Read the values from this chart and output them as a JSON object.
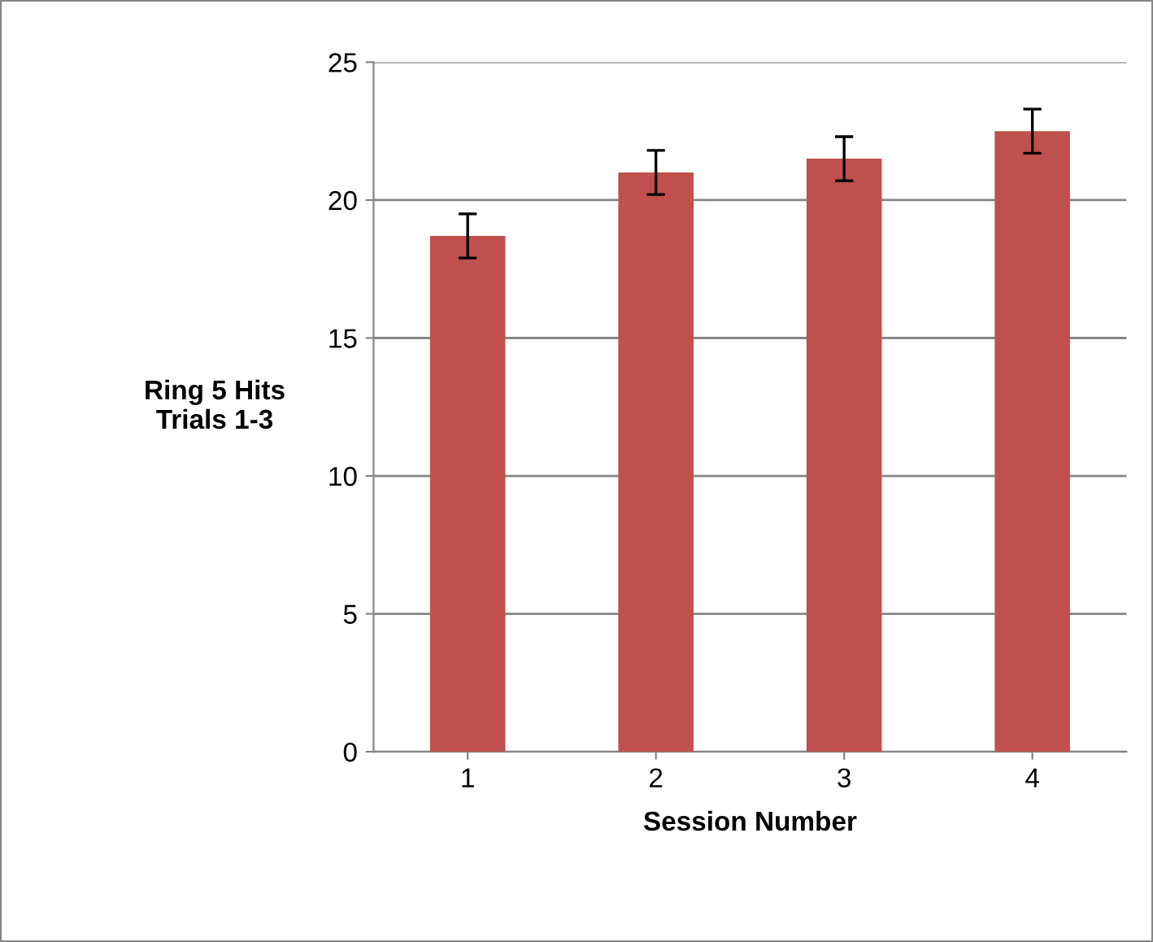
{
  "chart_data": {
    "type": "bar",
    "xlabel": "Session Number",
    "ylabel": "Ring 5 Hits\nTrials 1-3",
    "categories": [
      "1",
      "2",
      "3",
      "4"
    ],
    "values": [
      18.7,
      21.0,
      21.5,
      22.5
    ],
    "errors": [
      0.8,
      0.8,
      0.8,
      0.8
    ],
    "color": "#c0504d",
    "ylim": [
      0,
      25
    ],
    "yticks": [
      0,
      5,
      10,
      15,
      20,
      25
    ],
    "grid": "y",
    "legend": false
  }
}
